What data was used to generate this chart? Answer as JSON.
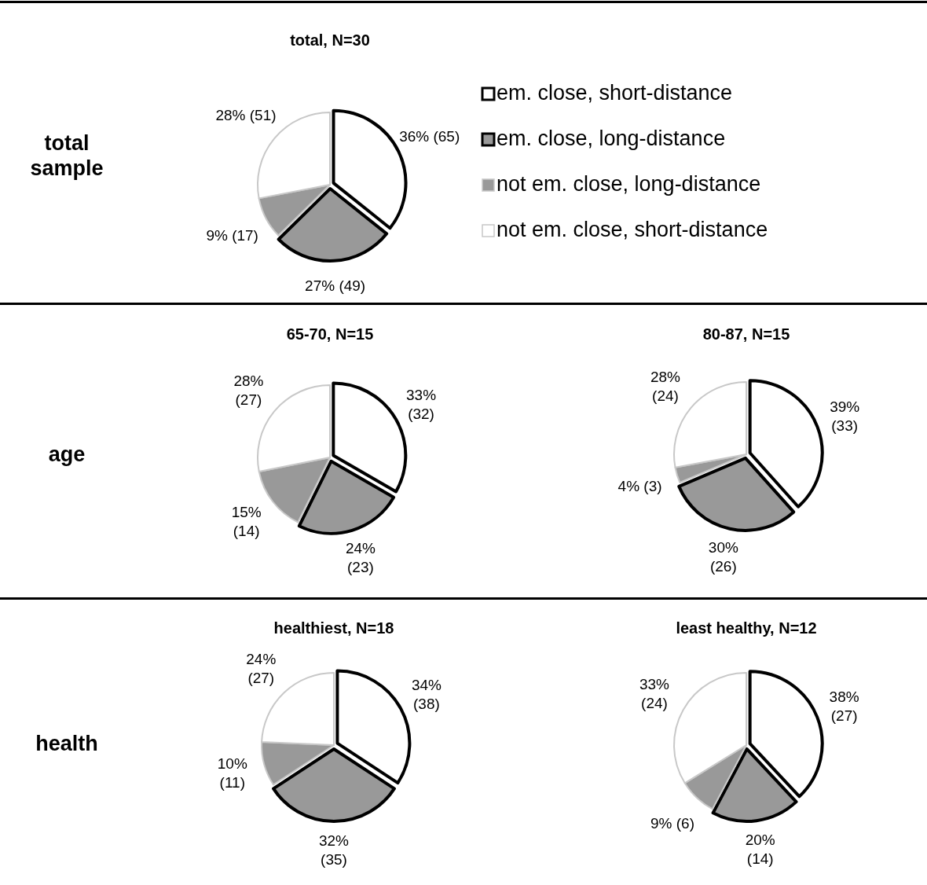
{
  "chart_data": [
    {
      "type": "pie",
      "title": "total,  N=30",
      "annotations": [
        "total sample"
      ],
      "categories": [
        "em. close, short-distance",
        "em. close, long-distance",
        "not em. close, long-distance",
        "not em. close, short-distance"
      ],
      "values": [
        65,
        49,
        17,
        51
      ],
      "value_labels": [
        "36% (65)",
        "27% (49)",
        "9% (17)",
        "28% (51)"
      ],
      "colors": [
        "#ffffff",
        "#999999",
        "#999999",
        "#ffffff"
      ],
      "legend": "right"
    },
    {
      "type": "pie",
      "title": "65-70,  N=15",
      "annotations": [
        "age"
      ],
      "categories": [
        null,
        null,
        null,
        null
      ],
      "values": [
        32,
        23,
        14,
        27
      ],
      "value_labels": [
        "33%\n(32)",
        "24%\n(23)",
        "15%\n(14)",
        "28%\n(27)"
      ],
      "colors": [
        "#ffffff",
        "#999999",
        "#999999",
        "#ffffff"
      ]
    },
    {
      "type": "pie",
      "title": "80-87,  N=15",
      "categories": [
        null,
        null,
        null,
        null
      ],
      "values": [
        33,
        26,
        3,
        24
      ],
      "value_labels": [
        "39%\n(33)",
        "30%\n(26)",
        "4% (3)",
        "28%\n(24)"
      ],
      "colors": [
        "#ffffff",
        "#999999",
        "#999999",
        "#ffffff"
      ]
    },
    {
      "type": "pie",
      "title": "healthiest,  N=18",
      "annotations": [
        "health"
      ],
      "categories": [
        null,
        null,
        null,
        null
      ],
      "values": [
        38,
        35,
        11,
        27
      ],
      "value_labels": [
        "34%\n(38)",
        "32%\n(35)",
        "10%\n(11)",
        "24%\n(27)"
      ],
      "colors": [
        "#ffffff",
        "#999999",
        "#999999",
        "#ffffff"
      ]
    },
    {
      "type": "pie",
      "title": "least healthy,  N=12",
      "categories": [
        null,
        null,
        null,
        null
      ],
      "values": [
        27,
        14,
        6,
        24
      ],
      "value_labels": [
        "38%\n(27)",
        "20%\n(14)",
        "9% (6)",
        "33%\n(24)"
      ],
      "colors": [
        "#ffffff",
        "#999999",
        "#999999",
        "#ffffff"
      ]
    }
  ]
}
